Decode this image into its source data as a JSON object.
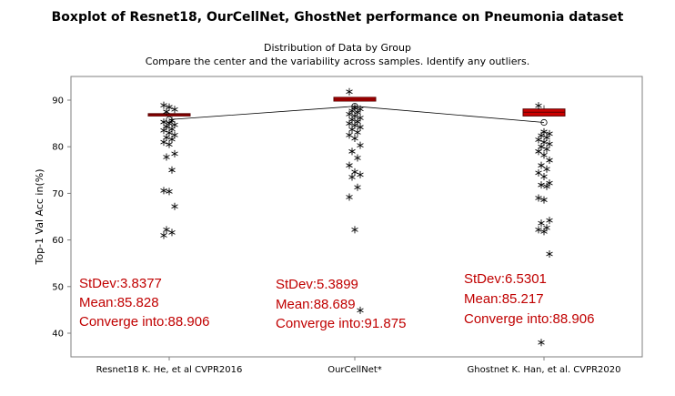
{
  "chart_data": {
    "type": "box",
    "title": "Boxplot of Resnet18, OurCellNet, GhostNet performance on Pneumonia dataset",
    "subtitle": [
      "Distribution of Data by Group",
      "Compare the center and the variability across samples. Identify any outliers."
    ],
    "xlabel": "",
    "ylabel": "Top-1 Val Acc in(%)",
    "ylim": [
      35,
      95
    ],
    "yticks": [
      40,
      50,
      60,
      70,
      80,
      90
    ],
    "categories": [
      "Resnet18 K. He, et al CVPR2016",
      "OurCellNet*",
      "Ghostnet K. Han, et al. CVPR2020"
    ],
    "boxes": [
      {
        "q1": 86.6,
        "median": 86.9,
        "q3": 87.1,
        "whisker_low": 86.6,
        "whisker_high": 87.1,
        "mean": 85.828
      },
      {
        "q1": 89.8,
        "median": 90.2,
        "q3": 90.6,
        "whisker_low": 89.8,
        "whisker_high": 90.6,
        "mean": 88.689
      },
      {
        "q1": 86.6,
        "median": 87.4,
        "q3": 88.1,
        "whisker_low": 86.6,
        "whisker_high": 88.9,
        "mean": 85.217
      }
    ],
    "outliers": [
      [
        88.9,
        88.5,
        88.0,
        87.5,
        85.6,
        85.3,
        85.0,
        84.7,
        84.3,
        83.8,
        83.5,
        83.0,
        82.5,
        82.0,
        81.6,
        81.0,
        80.5,
        78.5,
        77.8,
        75.0,
        70.6,
        70.4,
        67.2,
        62.2,
        61.6,
        61.0
      ],
      [
        91.8,
        88.4,
        88.1,
        87.7,
        87.4,
        87.0,
        86.6,
        86.2,
        85.8,
        85.4,
        85.0,
        84.6,
        84.2,
        83.7,
        83.1,
        82.5,
        81.8,
        80.3,
        79.0,
        77.6,
        76.0,
        74.6,
        74.0,
        73.5,
        71.3,
        69.2,
        62.2,
        44.9
      ],
      [
        88.8,
        83.2,
        82.8,
        82.4,
        82.0,
        81.5,
        81.0,
        80.6,
        80.0,
        79.5,
        79.0,
        78.2,
        77.1,
        76.0,
        75.2,
        74.4,
        73.6,
        72.2,
        71.8,
        71.5,
        69.0,
        68.6,
        64.2,
        63.6,
        62.6,
        62.2,
        61.8,
        57.0,
        38.0
      ]
    ],
    "annotations": [
      {
        "stdev": "StDev:3.8377",
        "mean": "Mean:85.828",
        "converge": "Converge into:88.906"
      },
      {
        "stdev": "StDev:5.3899",
        "mean": "Mean:88.689",
        "converge": "Converge into:91.875"
      },
      {
        "stdev": "StDev:6.5301",
        "mean": "Mean:85.217",
        "converge": "Converge into:88.906"
      }
    ],
    "colors": {
      "box_fill": "#cc0000",
      "box_edge": "#5a0000",
      "annotation": "#c00000",
      "frame": "#7f7f7f",
      "mean_line": "#000000"
    },
    "grid": false,
    "legend": "none"
  }
}
